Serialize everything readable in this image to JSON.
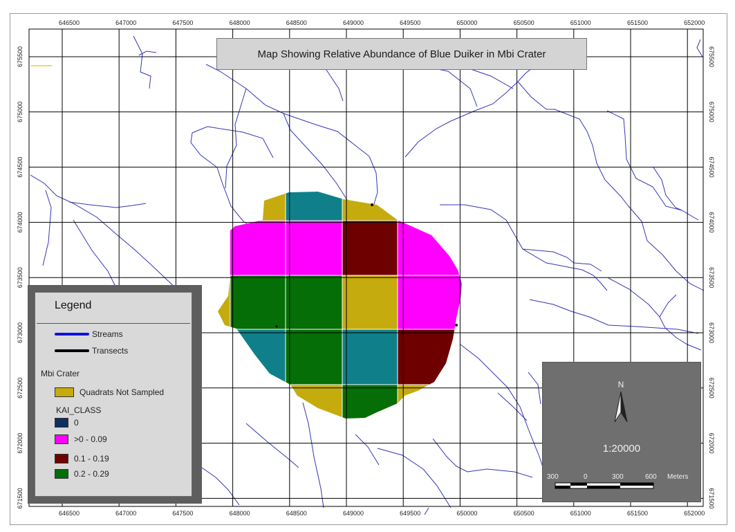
{
  "title": "Map Showing Relative Abundance of Blue Duiker in Mbi Crater",
  "axes": {
    "x_ticks": [
      "646500",
      "647000",
      "647500",
      "648000",
      "648500",
      "649000",
      "649500",
      "650000",
      "650500",
      "651000",
      "651500",
      "652000"
    ],
    "y_ticks": [
      "675500",
      "675000",
      "674500",
      "674000",
      "673500",
      "673000",
      "672500",
      "672000",
      "671500"
    ]
  },
  "legend": {
    "title": "Legend",
    "lines": [
      {
        "label": "Streams",
        "color": "#1010e0"
      },
      {
        "label": "Transects",
        "color": "#000000"
      }
    ],
    "layer_name": "Mbi Crater",
    "not_sampled": {
      "label": "Quadrats Not Sampled",
      "color": "#c5ab0e"
    },
    "class_field": "KAI_CLASS",
    "classes": [
      {
        "label": "0",
        "color": "#0f8089"
      },
      {
        "label": ">0 - 0.09",
        "color": "#ff00ff"
      },
      {
        "label": "0.1 - 0.19",
        "color": "#6e0000"
      },
      {
        "label": "0.2 - 0.29",
        "color": "#066e06"
      }
    ]
  },
  "scale": {
    "north_label": "N",
    "ratio": "1:20000",
    "bar_labels": [
      "300",
      "0",
      "300",
      "600"
    ],
    "unit": "Meters"
  },
  "colors": {
    "stream": "#3434b8",
    "grid": "#000000",
    "not_sampled": "#c5ab0e",
    "teal": "#0f8089",
    "magenta": "#ff00ff",
    "maroon": "#6e0000",
    "green": "#066e06"
  }
}
